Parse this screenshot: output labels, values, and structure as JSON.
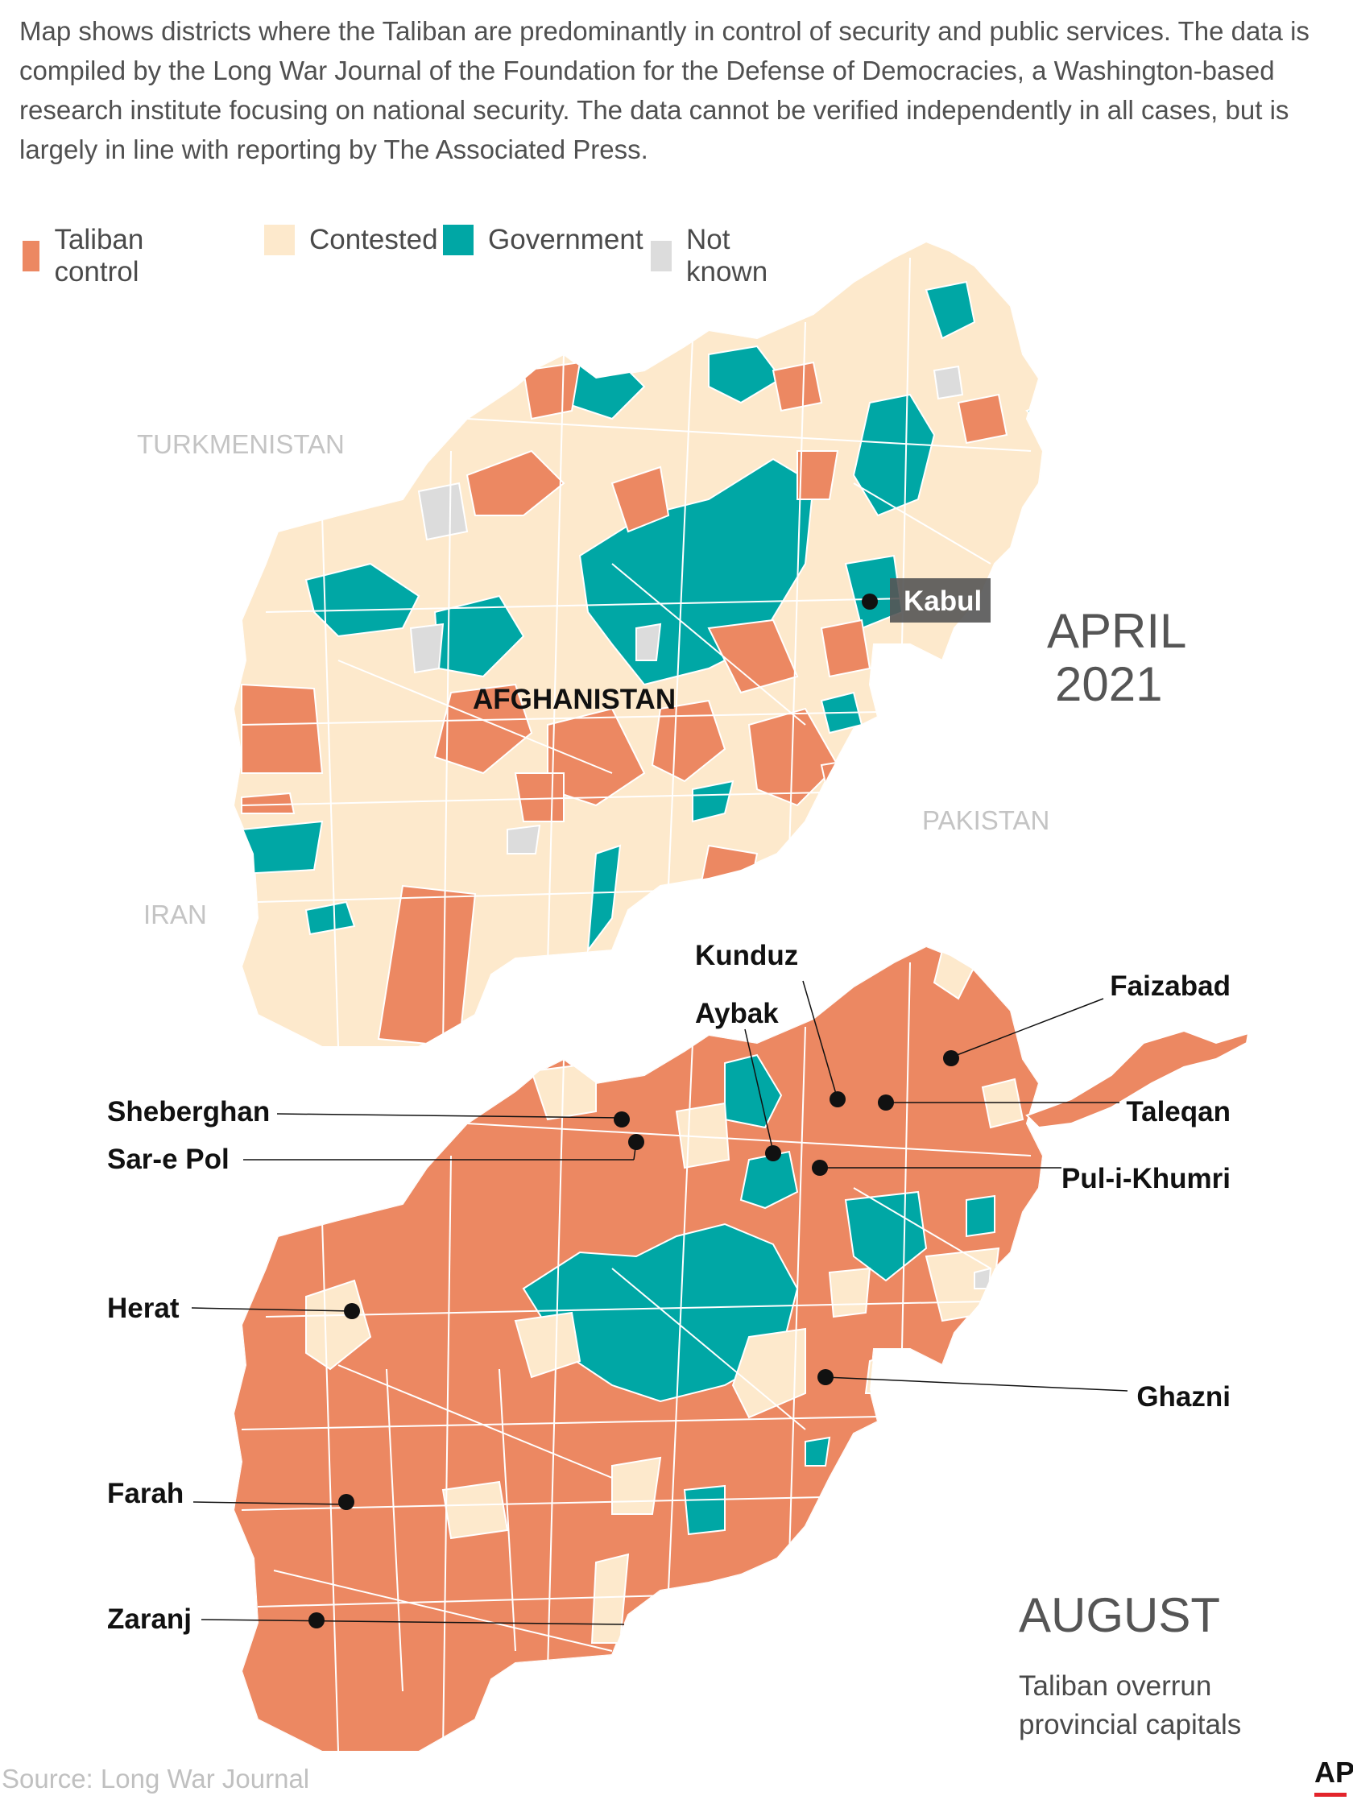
{
  "intro": "Map shows districts where the Taliban are predominantly in control of security and public services. The data is compiled by the Long War Journal of the Foundation for the Defense of Democracies, a Washington-based research institute focusing on national security. The data cannot be verified independently in all cases, but is largely in line with reporting by The Associated Press.",
  "legend": [
    {
      "label": "Taliban control",
      "color": "#ec8862"
    },
    {
      "label": "Contested",
      "color": "#fde9cc"
    },
    {
      "label": "Government",
      "color": "#00a7a5"
    },
    {
      "label": "Not known",
      "color": "#dcdcdc"
    }
  ],
  "april_map": {
    "title_line1": "APRIL",
    "title_line2": "2021",
    "countries": {
      "turkmenistan": "TURKMENISTAN",
      "pakistan": "PAKISTAN",
      "iran": "IRAN"
    },
    "afghanistan_label": "AFGHANISTAN",
    "kabul_label": "Kabul"
  },
  "august_map": {
    "title": "AUGUST",
    "subtitle_line1": "Taliban overrun",
    "subtitle_line2": "provincial capitals",
    "cities": {
      "kunduz": "Kunduz",
      "aybak": "Aybak",
      "faizabad": "Faizabad",
      "sheberghan": "Sheberghan",
      "sar_e_pol": "Sar-e Pol",
      "taleqan": "Taleqan",
      "pul_i_khumri": "Pul-i-Khumri",
      "herat": "Herat",
      "ghazni": "Ghazni",
      "farah": "Farah",
      "zaranj": "Zaranj"
    }
  },
  "source": "Source: Long War Journal",
  "logo": "AP"
}
